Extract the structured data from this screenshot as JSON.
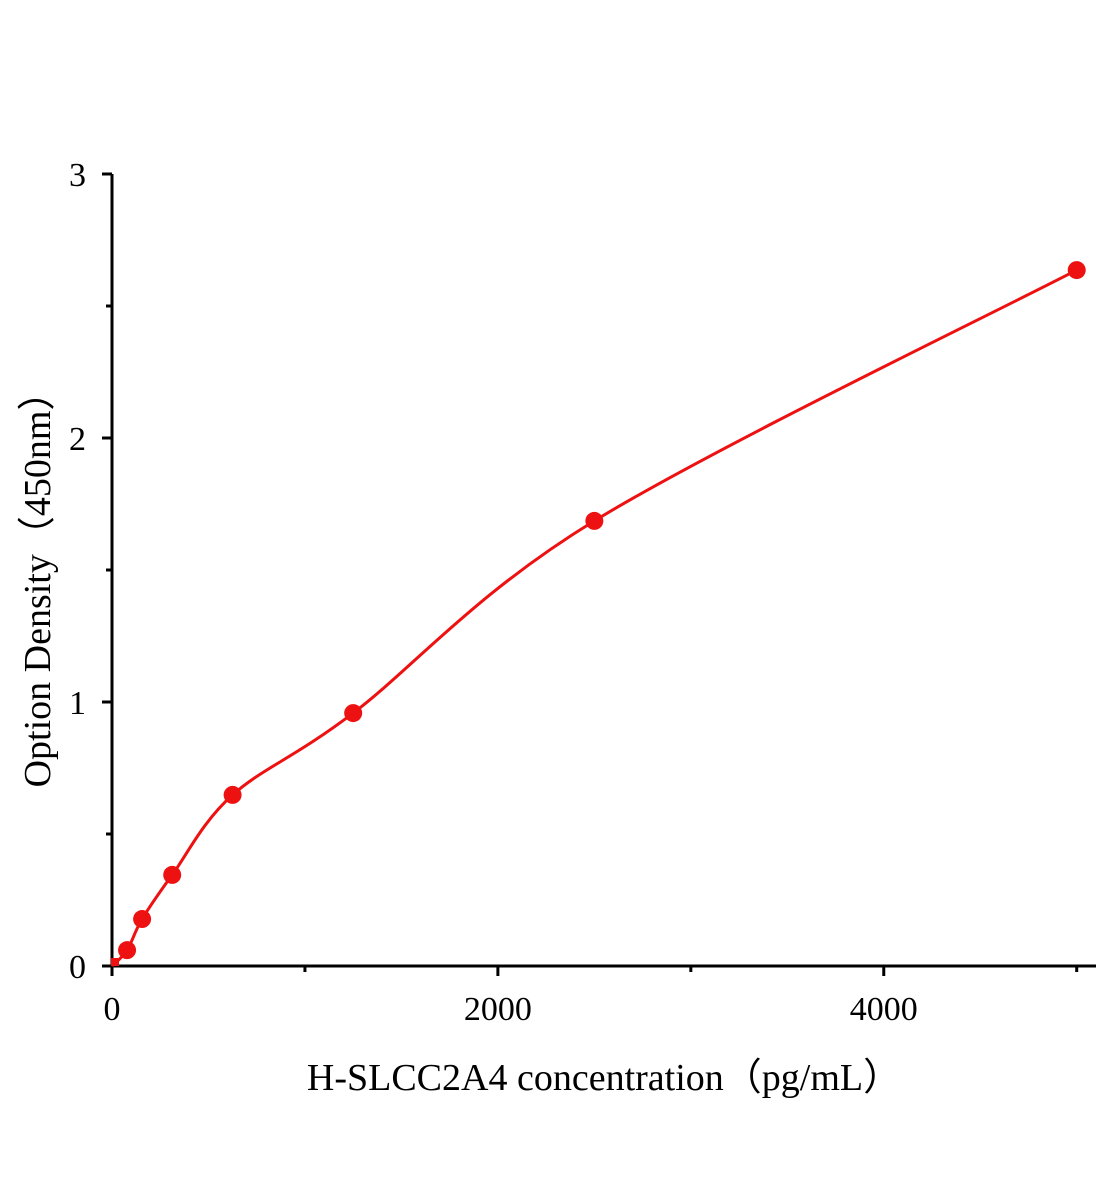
{
  "chart_data": {
    "type": "scatter",
    "title": "",
    "xlabel": "H-SLCC2A4 concentration（pg/mL）",
    "ylabel": "Option Density（450nm）",
    "xlim": [
      0,
      5100
    ],
    "ylim": [
      0,
      3
    ],
    "x_ticks": [
      0,
      2000,
      4000
    ],
    "x_tick_labels": [
      "0",
      "2000",
      "4000"
    ],
    "x_minor_ticks": [
      1000,
      3000,
      5000
    ],
    "y_ticks": [
      0,
      1,
      2,
      3
    ],
    "y_tick_labels": [
      "0",
      "1",
      "2",
      "3"
    ],
    "y_minor_ticks": [
      0.5,
      1.5,
      2.5
    ],
    "grid": false,
    "legend": "none",
    "series": [
      {
        "color": "#ee1111",
        "marker": "circle",
        "fit_line": true,
        "x": [
          0,
          78,
          156,
          312,
          625,
          1250,
          2500,
          5000
        ],
        "y": [
          0,
          0.06,
          0.178,
          0.345,
          0.648,
          0.958,
          1.686,
          2.636
        ]
      }
    ]
  }
}
